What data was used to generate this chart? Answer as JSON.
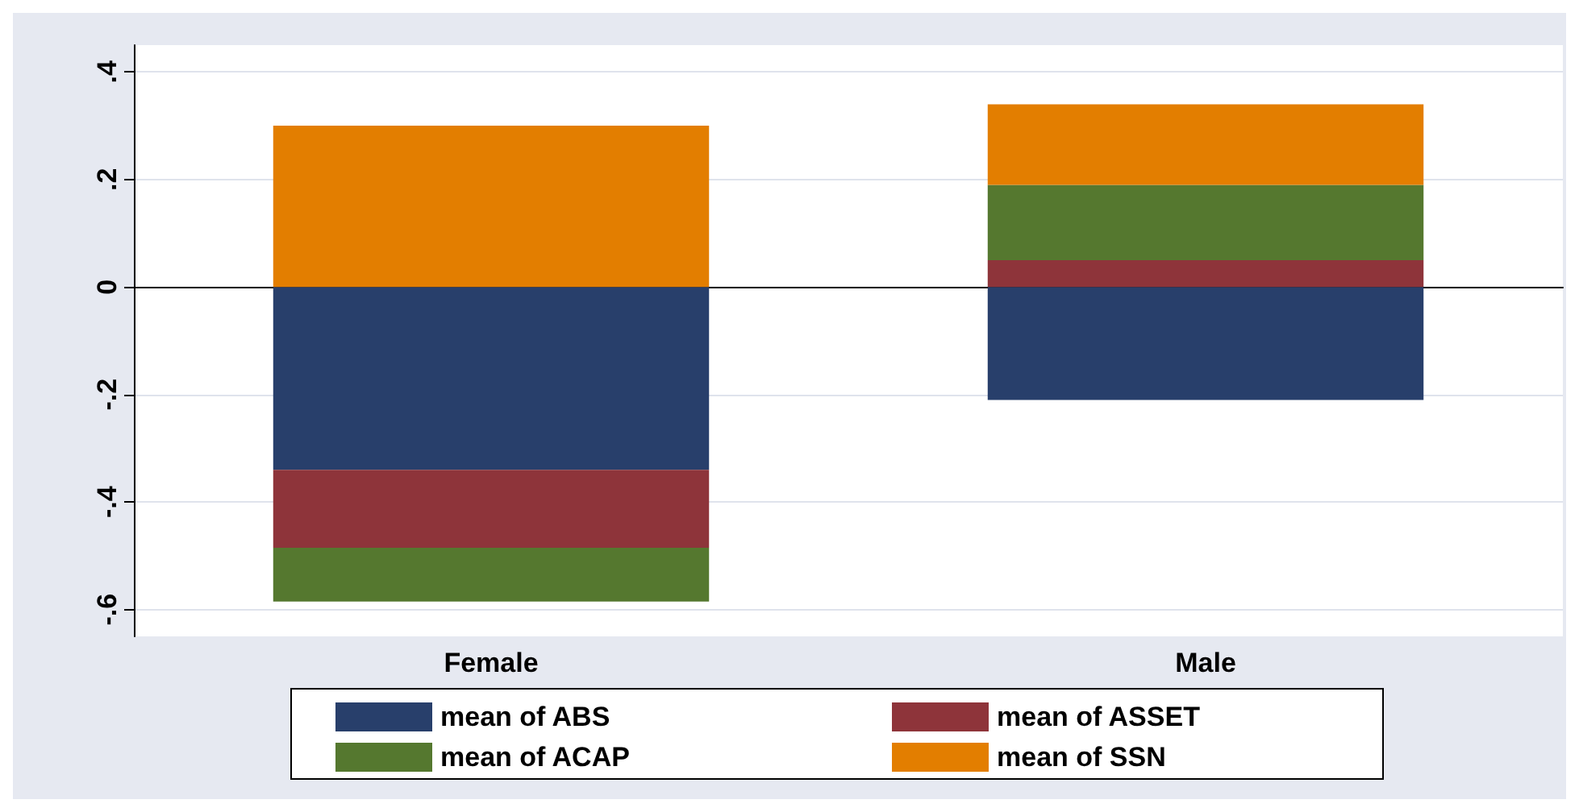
{
  "chart_data": {
    "type": "bar",
    "stacked": true,
    "categories": [
      "Female",
      "Male"
    ],
    "series": [
      {
        "name": "mean of ABS",
        "color": "#283f6b",
        "values": [
          -0.34,
          -0.21
        ]
      },
      {
        "name": "mean of ASSET",
        "color": "#8e343a",
        "values": [
          -0.145,
          0.05
        ]
      },
      {
        "name": "mean of ACAP",
        "color": "#55782f",
        "values": [
          -0.1,
          0.14
        ]
      },
      {
        "name": "mean of SSN",
        "color": "#e37e00",
        "values": [
          0.3,
          0.15
        ]
      }
    ],
    "ylim": [
      -0.65,
      0.45
    ],
    "yticks": [
      {
        "value": -0.6,
        "label": "-.6"
      },
      {
        "value": -0.4,
        "label": "-.4"
      },
      {
        "value": -0.2,
        "label": "-.2"
      },
      {
        "value": 0,
        "label": "0"
      },
      {
        "value": 0.2,
        "label": ".2"
      },
      {
        "value": 0.4,
        "label": ".4"
      }
    ],
    "grid": "y",
    "legend": "bottom"
  }
}
